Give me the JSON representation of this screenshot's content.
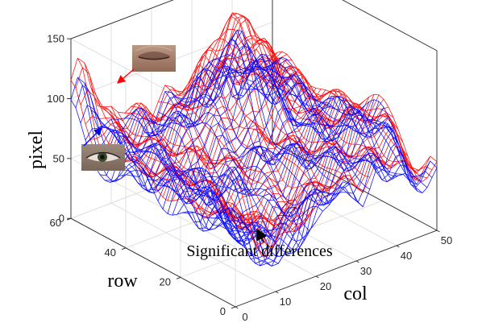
{
  "chart_data": {
    "type": "surface-3d-mesh",
    "title": "",
    "xlabel": "col",
    "ylabel": "row",
    "zlabel": "pixel",
    "xlim": [
      0,
      50
    ],
    "ylim": [
      0,
      60
    ],
    "zlim": [
      0,
      150
    ],
    "x_ticks": [
      0,
      10,
      20,
      30,
      40,
      50
    ],
    "y_ticks": [
      0,
      20,
      40,
      60
    ],
    "z_ticks": [
      0,
      50,
      100,
      150
    ],
    "grid": true,
    "legend": "none",
    "grid_size": {
      "rows": 35,
      "cols": 31
    },
    "series": [
      {
        "color": "#ff0000",
        "surface": "closed-eye"
      },
      {
        "color": "#0000ff",
        "surface": "open-eye"
      }
    ],
    "annotations": [
      {
        "text": "",
        "color": "#ff0000",
        "thumbnail": "closed-eye-thumbnail",
        "arrow_target": {
          "col": 0,
          "row": 60,
          "pixel": 112
        }
      },
      {
        "text": "",
        "color": "#0000ff",
        "thumbnail": "open-eye-thumbnail",
        "arrow_target": {
          "col": 0,
          "row": 60,
          "pixel": 100
        }
      },
      {
        "text": "Significant differences",
        "color": "#000000",
        "arrow_target": {
          "col": 17,
          "row": 15,
          "pixel": 8
        }
      }
    ]
  }
}
